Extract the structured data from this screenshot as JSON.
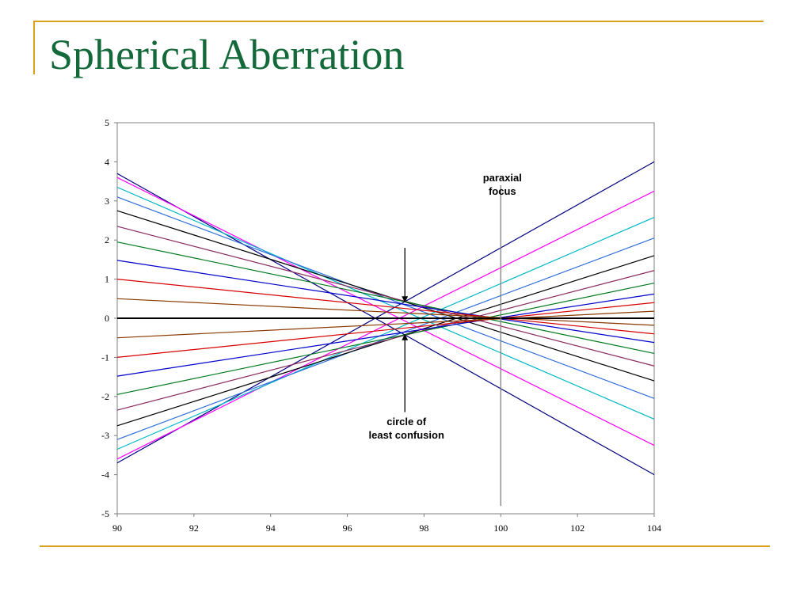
{
  "slide": {
    "title": "Spherical Aberration",
    "accent_color": "#d9a21b",
    "title_color": "#14693a"
  },
  "chart_data": {
    "type": "line",
    "title": "",
    "xlabel": "",
    "ylabel": "",
    "xlim": [
      90,
      104
    ],
    "ylim": [
      -5,
      5
    ],
    "x_ticks": [
      90,
      92,
      94,
      96,
      98,
      100,
      102,
      104
    ],
    "y_ticks": [
      5,
      4,
      3,
      2,
      1,
      0,
      -1,
      -2,
      -3,
      -4,
      -5
    ],
    "grid": false,
    "legend": "none",
    "series": [
      {
        "color": "#000080",
        "x": [
          90,
          104
        ],
        "y": [
          3.7,
          -4.0
        ]
      },
      {
        "color": "#000080",
        "x": [
          90,
          104
        ],
        "y": [
          -3.7,
          4.0
        ]
      },
      {
        "color": "#ff00ff",
        "x": [
          90,
          104
        ],
        "y": [
          3.6,
          -3.25
        ]
      },
      {
        "color": "#ff00ff",
        "x": [
          90,
          104
        ],
        "y": [
          -3.6,
          3.25
        ]
      },
      {
        "color": "#00b8c8",
        "x": [
          90,
          104
        ],
        "y": [
          3.35,
          -2.58
        ]
      },
      {
        "color": "#00b8c8",
        "x": [
          90,
          104
        ],
        "y": [
          -3.35,
          2.58
        ]
      },
      {
        "color": "#2e6fd8",
        "x": [
          90,
          104
        ],
        "y": [
          3.1,
          -2.05
        ]
      },
      {
        "color": "#2e6fd8",
        "x": [
          90,
          104
        ],
        "y": [
          -3.1,
          2.05
        ]
      },
      {
        "color": "#000000",
        "x": [
          90,
          104
        ],
        "y": [
          2.75,
          -1.6
        ]
      },
      {
        "color": "#000000",
        "x": [
          90,
          104
        ],
        "y": [
          -2.75,
          1.6
        ]
      },
      {
        "color": "#8b2a5e",
        "x": [
          90,
          104
        ],
        "y": [
          2.35,
          -1.22
        ]
      },
      {
        "color": "#8b2a5e",
        "x": [
          90,
          104
        ],
        "y": [
          -2.35,
          1.22
        ]
      },
      {
        "color": "#007a1e",
        "x": [
          90,
          104
        ],
        "y": [
          1.95,
          -0.9
        ]
      },
      {
        "color": "#007a1e",
        "x": [
          90,
          104
        ],
        "y": [
          -1.95,
          0.9
        ]
      },
      {
        "color": "#0000cc",
        "x": [
          90,
          104
        ],
        "y": [
          1.48,
          -0.62
        ]
      },
      {
        "color": "#0000cc",
        "x": [
          90,
          104
        ],
        "y": [
          -1.48,
          0.62
        ]
      },
      {
        "color": "#d60000",
        "x": [
          90,
          104
        ],
        "y": [
          1.0,
          -0.4
        ]
      },
      {
        "color": "#d60000",
        "x": [
          90,
          104
        ],
        "y": [
          -1.0,
          0.4
        ]
      },
      {
        "color": "#8b3a00",
        "x": [
          90,
          104
        ],
        "y": [
          0.5,
          -0.18
        ]
      },
      {
        "color": "#8b3a00",
        "x": [
          90,
          104
        ],
        "y": [
          -0.5,
          0.18
        ]
      },
      {
        "color": "#000000",
        "x": [
          90,
          104
        ],
        "y": [
          0,
          0
        ],
        "width": 2
      }
    ],
    "annotations": [
      {
        "text_lines": [
          "paraxial",
          "focus"
        ],
        "x": 100,
        "y_from": -4.8,
        "y_to": 3.4,
        "kind": "vertical-line"
      },
      {
        "text_lines": [
          "circle of",
          "least confusion"
        ],
        "x": 97.5,
        "arrow_down": {
          "from": 1.8,
          "to": 0.4
        },
        "arrow_up": {
          "from": -2.4,
          "to": -0.4
        }
      }
    ]
  }
}
